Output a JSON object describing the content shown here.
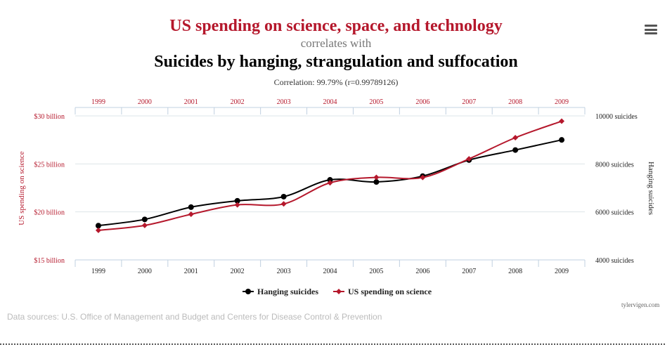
{
  "header": {
    "title_primary": "US spending on science, space, and technology",
    "connector": "correlates with",
    "title_secondary": "Suicides by hanging, strangulation and suffocation",
    "correlation": "Correlation: 99.79% (r=0.99789126)"
  },
  "footer": {
    "source": "Data sources: U.S. Office of Management and Budget and Centers for Disease Control & Prevention",
    "credit": "tylervigen.com"
  },
  "menu_icon": "hamburger-menu-icon",
  "colors": {
    "spending": "#b5182c",
    "suicides": "#000000",
    "grid": "#dde4e8"
  },
  "chart_data": {
    "type": "line",
    "categories": [
      "1999",
      "2000",
      "2001",
      "2002",
      "2003",
      "2004",
      "2005",
      "2006",
      "2007",
      "2008",
      "2009"
    ],
    "series": [
      {
        "name": "Hanging suicides",
        "axis": "right",
        "color": "#000000",
        "marker": "circle",
        "values": [
          5427,
          5688,
          6198,
          6462,
          6635,
          7336,
          7248,
          7491,
          8161,
          8578,
          9000
        ]
      },
      {
        "name": "US spending on science",
        "axis": "left",
        "color": "#b5182c",
        "marker": "diamond",
        "values": [
          18.079,
          18.594,
          19.753,
          20.734,
          20.831,
          23.029,
          23.597,
          23.584,
          25.525,
          27.731,
          29.449
        ]
      }
    ],
    "y_left": {
      "label": "US spending on science",
      "ylim": [
        15,
        30
      ],
      "ticks": [
        "$15 billion",
        "$20 billion",
        "$25 billion",
        "$30 billion"
      ]
    },
    "y_right": {
      "label": "Hanging suicides",
      "ylim": [
        4000,
        10000
      ],
      "ticks": [
        "4000 suicides",
        "6000 suicides",
        "8000 suicides",
        "10000 suicides"
      ]
    },
    "legend": "bottom-center",
    "grid": true
  }
}
